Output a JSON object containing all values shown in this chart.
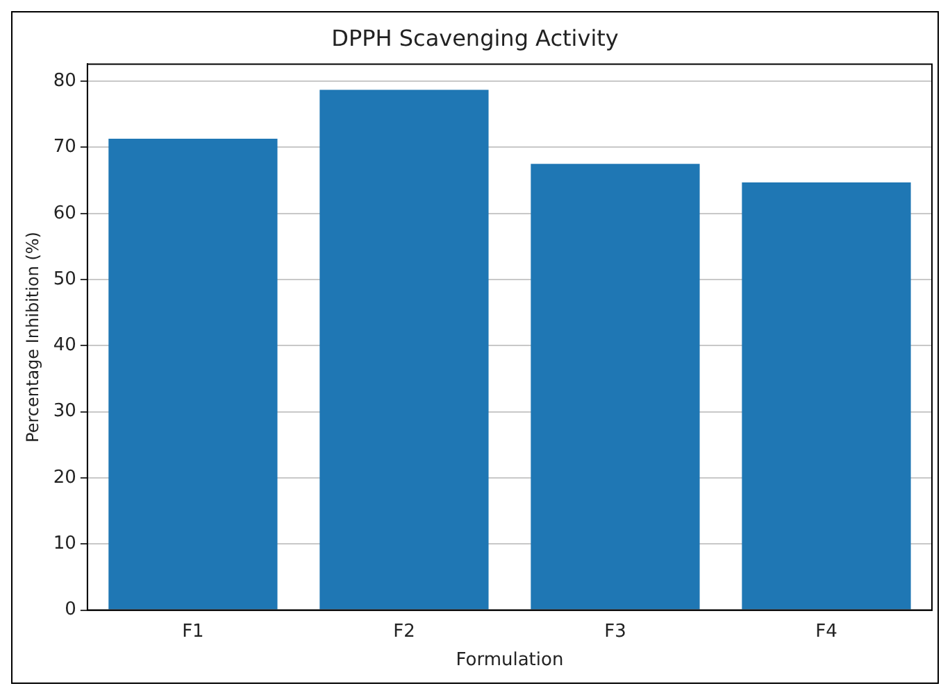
{
  "chart_data": {
    "type": "bar",
    "title": "DPPH Scavenging Activity",
    "xlabel": "Formulation",
    "ylabel": "Percentage Inhibition (%)",
    "categories": [
      "F1",
      "F2",
      "F3",
      "F4"
    ],
    "values": [
      71.3,
      78.7,
      67.5,
      64.7
    ],
    "color": "#1f77b4",
    "ylim": [
      0,
      82.6
    ],
    "yticks": [
      0,
      10,
      20,
      30,
      40,
      50,
      60,
      70,
      80
    ],
    "grid": "y",
    "legend": false
  }
}
